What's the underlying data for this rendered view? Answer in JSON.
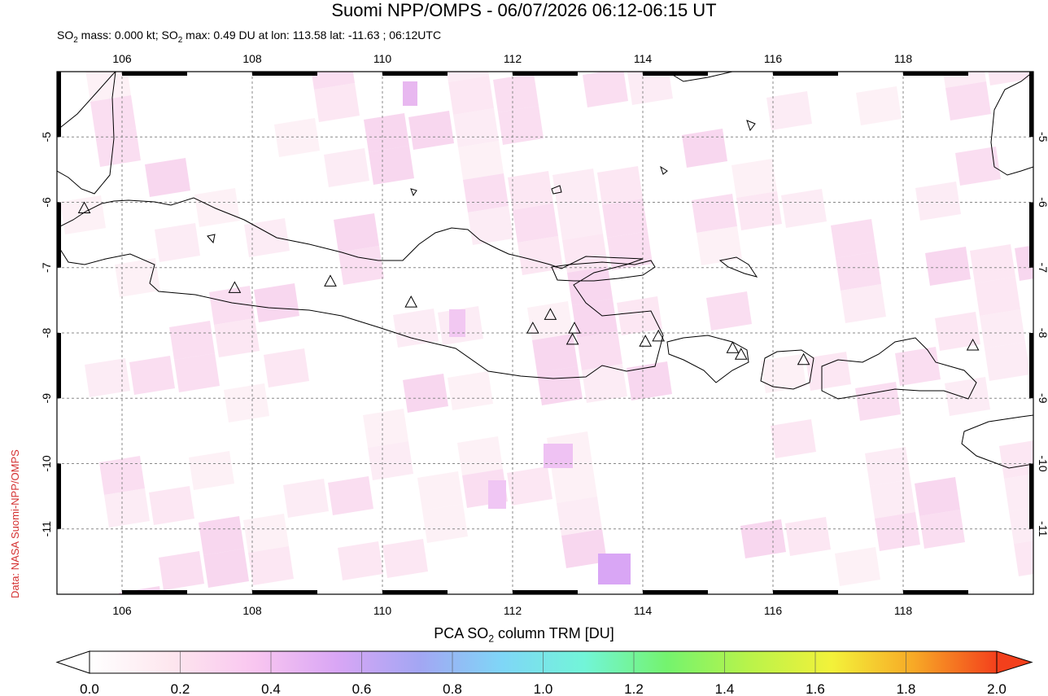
{
  "title": "Suomi NPP/OMPS - 06/07/2026 06:12-06:15 UT",
  "subtitle": {
    "prefix": "SO",
    "sub": "2",
    "mid": " mass: 0.000 kt; SO",
    "rest": " max: 0.49 DU at lon: 113.58 lat: -11.63 ; 06:12UTC"
  },
  "credit": "Data: NASA Suomi-NPP/OMPS",
  "colorbar": {
    "label_prefix": "PCA SO",
    "label_sub": "2",
    "label_suffix": " column TRM [DU]",
    "ticks": [
      "0.0",
      "0.2",
      "0.4",
      "0.6",
      "0.8",
      "1.0",
      "1.2",
      "1.4",
      "1.6",
      "1.8",
      "2.0"
    ],
    "colors": [
      "#ffffff",
      "#fde6ee",
      "#f9c6f0",
      "#d9a6f5",
      "#a3a6f3",
      "#7fd6f7",
      "#72f5d8",
      "#74f36e",
      "#b9f34a",
      "#f3f23a",
      "#f7a826",
      "#f3401c"
    ]
  },
  "map": {
    "lon_ticks": [
      "106",
      "108",
      "110",
      "112",
      "114",
      "116",
      "118"
    ],
    "lat_ticks": [
      "-5",
      "-6",
      "-7",
      "-8",
      "-9",
      "-10",
      "-11"
    ],
    "lon_range": [
      105,
      120
    ],
    "lat_range": [
      -12,
      -4
    ]
  },
  "volcanoes": [
    {
      "lon": 105.42,
      "lat": -6.1
    },
    {
      "lon": 107.73,
      "lat": -7.32
    },
    {
      "lon": 109.2,
      "lat": -7.22
    },
    {
      "lon": 110.44,
      "lat": -7.54
    },
    {
      "lon": 112.31,
      "lat": -7.94
    },
    {
      "lon": 112.58,
      "lat": -7.73
    },
    {
      "lon": 112.95,
      "lat": -7.94
    },
    {
      "lon": 112.92,
      "lat": -8.11
    },
    {
      "lon": 114.04,
      "lat": -8.14
    },
    {
      "lon": 114.24,
      "lat": -8.06
    },
    {
      "lon": 115.38,
      "lat": -8.24
    },
    {
      "lon": 115.51,
      "lat": -8.34
    },
    {
      "lon": 116.47,
      "lat": -8.42
    },
    {
      "lon": 119.07,
      "lat": -8.2
    }
  ]
}
